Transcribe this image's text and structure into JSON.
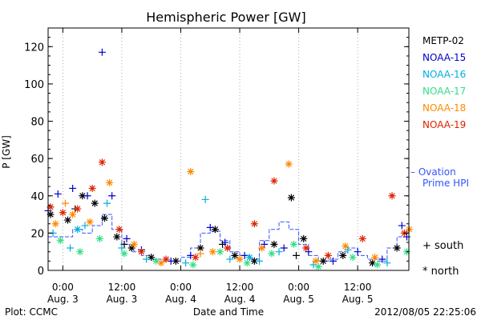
{
  "chart_data": {
    "type": "scatter",
    "title": "Hemispheric Power [GW]",
    "xlabel": "Date and Time",
    "ylabel": "P [GW]",
    "xlim": [
      "2012-08-02 21:00",
      "2012-08-05 22:25"
    ],
    "ylim": [
      0,
      130
    ],
    "yticks": [
      0,
      20,
      40,
      60,
      80,
      100,
      120
    ],
    "xticks": [
      {
        "t": "2012-08-03 00:00",
        "time": "0:00",
        "day": "Aug. 3"
      },
      {
        "t": "2012-08-03 12:00",
        "time": "12:00",
        "day": "Aug. 3"
      },
      {
        "t": "2012-08-04 00:00",
        "time": "0:00",
        "day": "Aug. 4"
      },
      {
        "t": "2012-08-04 12:00",
        "time": "12:00",
        "day": "Aug. 4"
      },
      {
        "t": "2012-08-05 00:00",
        "time": "0:00",
        "day": "Aug. 5"
      },
      {
        "t": "2012-08-05 12:00",
        "time": "12:00",
        "day": "Aug. 5"
      }
    ],
    "legend": {
      "placement": "right",
      "symbols": [
        {
          "symbol": "+",
          "label": "south"
        },
        {
          "symbol": "*",
          "label": "north"
        }
      ]
    },
    "series": [
      {
        "name": "METP-02",
        "color": "#000000",
        "points": [
          {
            "t": "2012-08-02 21:30",
            "y": 30,
            "hemi": "north"
          },
          {
            "t": "2012-08-03 01:00",
            "y": 27,
            "hemi": "north"
          },
          {
            "t": "2012-08-03 04:00",
            "y": 40,
            "hemi": "north"
          },
          {
            "t": "2012-08-03 06:30",
            "y": 36,
            "hemi": "north"
          },
          {
            "t": "2012-08-03 08:30",
            "y": 28,
            "hemi": "north"
          },
          {
            "t": "2012-08-03 11:00",
            "y": 18,
            "hemi": "north"
          },
          {
            "t": "2012-08-03 14:00",
            "y": 12,
            "hemi": "north"
          },
          {
            "t": "2012-08-03 18:00",
            "y": 7,
            "hemi": "north"
          },
          {
            "t": "2012-08-03 23:00",
            "y": 5,
            "hemi": "north"
          },
          {
            "t": "2012-08-04 04:00",
            "y": 12,
            "hemi": "north"
          },
          {
            "t": "2012-08-04 07:00",
            "y": 22,
            "hemi": "north"
          },
          {
            "t": "2012-08-04 11:00",
            "y": 8,
            "hemi": "north"
          },
          {
            "t": "2012-08-04 15:00",
            "y": 5,
            "hemi": "north"
          },
          {
            "t": "2012-08-04 19:00",
            "y": 14,
            "hemi": "north"
          },
          {
            "t": "2012-08-04 22:30",
            "y": 39,
            "hemi": "north"
          },
          {
            "t": "2012-08-05 01:00",
            "y": 17,
            "hemi": "north"
          },
          {
            "t": "2012-08-05 05:00",
            "y": 5,
            "hemi": "north"
          },
          {
            "t": "2012-08-05 09:00",
            "y": 8,
            "hemi": "north"
          },
          {
            "t": "2012-08-05 15:00",
            "y": 4,
            "hemi": "north"
          },
          {
            "t": "2012-08-05 20:00",
            "y": 12,
            "hemi": "north"
          },
          {
            "t": "2012-08-03 02:30",
            "y": 33,
            "hemi": "south"
          },
          {
            "t": "2012-08-03 12:30",
            "y": 14,
            "hemi": "south"
          },
          {
            "t": "2012-08-04 08:30",
            "y": 14,
            "hemi": "south"
          },
          {
            "t": "2012-08-04 23:30",
            "y": 8,
            "hemi": "south"
          }
        ]
      },
      {
        "name": "NOAA-15",
        "color": "#0000cc",
        "points": [
          {
            "t": "2012-08-02 21:00",
            "y": 32,
            "hemi": "south"
          },
          {
            "t": "2012-08-02 23:00",
            "y": 41,
            "hemi": "south"
          },
          {
            "t": "2012-08-03 02:00",
            "y": 44,
            "hemi": "south"
          },
          {
            "t": "2012-08-03 05:00",
            "y": 40,
            "hemi": "south"
          },
          {
            "t": "2012-08-03 08:00",
            "y": 117,
            "hemi": "south"
          },
          {
            "t": "2012-08-03 10:00",
            "y": 40,
            "hemi": "south"
          },
          {
            "t": "2012-08-03 13:00",
            "y": 17,
            "hemi": "south"
          },
          {
            "t": "2012-08-03 16:00",
            "y": 11,
            "hemi": "south"
          },
          {
            "t": "2012-08-03 22:00",
            "y": 5,
            "hemi": "south"
          },
          {
            "t": "2012-08-04 02:00",
            "y": 8,
            "hemi": "south"
          },
          {
            "t": "2012-08-04 06:00",
            "y": 23,
            "hemi": "south"
          },
          {
            "t": "2012-08-04 09:00",
            "y": 15,
            "hemi": "south"
          },
          {
            "t": "2012-08-04 13:00",
            "y": 8,
            "hemi": "south"
          },
          {
            "t": "2012-08-04 17:00",
            "y": 14,
            "hemi": "south"
          },
          {
            "t": "2012-08-04 21:00",
            "y": 12,
            "hemi": "south"
          },
          {
            "t": "2012-08-05 02:00",
            "y": 10,
            "hemi": "south"
          },
          {
            "t": "2012-08-05 07:00",
            "y": 5,
            "hemi": "south"
          },
          {
            "t": "2012-08-05 12:00",
            "y": 10,
            "hemi": "south"
          },
          {
            "t": "2012-08-05 17:00",
            "y": 6,
            "hemi": "south"
          },
          {
            "t": "2012-08-05 21:00",
            "y": 24,
            "hemi": "south"
          },
          {
            "t": "2012-08-05 22:00",
            "y": 18,
            "hemi": "south"
          }
        ]
      },
      {
        "name": "NOAA-16",
        "color": "#00b0e0",
        "points": [
          {
            "t": "2012-08-02 22:00",
            "y": 20,
            "hemi": "south"
          },
          {
            "t": "2012-08-03 01:30",
            "y": 12,
            "hemi": "south"
          },
          {
            "t": "2012-08-03 04:30",
            "y": 24,
            "hemi": "south"
          },
          {
            "t": "2012-08-03 09:00",
            "y": 36,
            "hemi": "south"
          },
          {
            "t": "2012-08-03 12:00",
            "y": 12,
            "hemi": "south"
          },
          {
            "t": "2012-08-03 17:00",
            "y": 6,
            "hemi": "south"
          },
          {
            "t": "2012-08-04 01:00",
            "y": 4,
            "hemi": "south"
          },
          {
            "t": "2012-08-04 05:00",
            "y": 38,
            "hemi": "south"
          },
          {
            "t": "2012-08-04 10:00",
            "y": 6,
            "hemi": "south"
          },
          {
            "t": "2012-08-04 16:00",
            "y": 5,
            "hemi": "south"
          },
          {
            "t": "2012-08-04 20:00",
            "y": 10,
            "hemi": "south"
          },
          {
            "t": "2012-08-05 03:00",
            "y": 3,
            "hemi": "south"
          },
          {
            "t": "2012-08-05 10:00",
            "y": 11,
            "hemi": "south"
          },
          {
            "t": "2012-08-05 18:00",
            "y": 4,
            "hemi": "south"
          },
          {
            "t": "2012-08-03 03:00",
            "y": 22,
            "hemi": "north"
          },
          {
            "t": "2012-08-04 14:00",
            "y": 7,
            "hemi": "north"
          }
        ]
      },
      {
        "name": "NOAA-17",
        "color": "#33dd88",
        "points": [
          {
            "t": "2012-08-02 23:30",
            "y": 16,
            "hemi": "north"
          },
          {
            "t": "2012-08-03 03:30",
            "y": 10,
            "hemi": "north"
          },
          {
            "t": "2012-08-03 07:30",
            "y": 17,
            "hemi": "north"
          },
          {
            "t": "2012-08-03 12:30",
            "y": 9,
            "hemi": "north"
          },
          {
            "t": "2012-08-03 19:00",
            "y": 5,
            "hemi": "north"
          },
          {
            "t": "2012-08-04 02:30",
            "y": 3,
            "hemi": "north"
          },
          {
            "t": "2012-08-04 08:00",
            "y": 10,
            "hemi": "north"
          },
          {
            "t": "2012-08-04 13:30",
            "y": 4,
            "hemi": "north"
          },
          {
            "t": "2012-08-04 18:30",
            "y": 9,
            "hemi": "north"
          },
          {
            "t": "2012-08-04 23:00",
            "y": 14,
            "hemi": "north"
          },
          {
            "t": "2012-08-05 04:00",
            "y": 2,
            "hemi": "north"
          },
          {
            "t": "2012-08-05 11:00",
            "y": 7,
            "hemi": "north"
          },
          {
            "t": "2012-08-05 16:00",
            "y": 3,
            "hemi": "north"
          },
          {
            "t": "2012-08-05 22:00",
            "y": 10,
            "hemi": "north"
          }
        ]
      },
      {
        "name": "NOAA-18",
        "color": "#ff8800",
        "points": [
          {
            "t": "2012-08-02 22:30",
            "y": 25,
            "hemi": "north"
          },
          {
            "t": "2012-08-03 02:00",
            "y": 30,
            "hemi": "north"
          },
          {
            "t": "2012-08-03 05:30",
            "y": 26,
            "hemi": "north"
          },
          {
            "t": "2012-08-03 09:30",
            "y": 47,
            "hemi": "north"
          },
          {
            "t": "2012-08-03 14:30",
            "y": 14,
            "hemi": "north"
          },
          {
            "t": "2012-08-03 20:00",
            "y": 4,
            "hemi": "north"
          },
          {
            "t": "2012-08-04 02:00",
            "y": 53,
            "hemi": "north"
          },
          {
            "t": "2012-08-04 06:30",
            "y": 10,
            "hemi": "north"
          },
          {
            "t": "2012-08-04 12:00",
            "y": 6,
            "hemi": "north"
          },
          {
            "t": "2012-08-04 16:30",
            "y": 12,
            "hemi": "north"
          },
          {
            "t": "2012-08-04 22:00",
            "y": 57,
            "hemi": "north"
          },
          {
            "t": "2012-08-05 03:30",
            "y": 5,
            "hemi": "north"
          },
          {
            "t": "2012-08-05 09:30",
            "y": 13,
            "hemi": "north"
          },
          {
            "t": "2012-08-05 15:30",
            "y": 7,
            "hemi": "north"
          },
          {
            "t": "2012-08-05 22:30",
            "y": 22,
            "hemi": "north"
          },
          {
            "t": "2012-08-03 00:30",
            "y": 36,
            "hemi": "south"
          },
          {
            "t": "2012-08-04 04:00",
            "y": 9,
            "hemi": "south"
          }
        ]
      },
      {
        "name": "NOAA-19",
        "color": "#dd2200",
        "points": [
          {
            "t": "2012-08-02 21:30",
            "y": 34,
            "hemi": "north"
          },
          {
            "t": "2012-08-03 00:00",
            "y": 31,
            "hemi": "north"
          },
          {
            "t": "2012-08-03 03:00",
            "y": 33,
            "hemi": "north"
          },
          {
            "t": "2012-08-03 06:00",
            "y": 44,
            "hemi": "north"
          },
          {
            "t": "2012-08-03 08:00",
            "y": 58,
            "hemi": "north"
          },
          {
            "t": "2012-08-03 11:30",
            "y": 22,
            "hemi": "north"
          },
          {
            "t": "2012-08-03 16:00",
            "y": 10,
            "hemi": "north"
          },
          {
            "t": "2012-08-03 21:00",
            "y": 6,
            "hemi": "north"
          },
          {
            "t": "2012-08-04 03:00",
            "y": 7,
            "hemi": "north"
          },
          {
            "t": "2012-08-04 09:30",
            "y": 12,
            "hemi": "north"
          },
          {
            "t": "2012-08-04 15:00",
            "y": 25,
            "hemi": "north"
          },
          {
            "t": "2012-08-04 19:00",
            "y": 48,
            "hemi": "north"
          },
          {
            "t": "2012-08-05 01:30",
            "y": 12,
            "hemi": "north"
          },
          {
            "t": "2012-08-05 06:00",
            "y": 8,
            "hemi": "north"
          },
          {
            "t": "2012-08-05 13:00",
            "y": 17,
            "hemi": "north"
          },
          {
            "t": "2012-08-05 19:00",
            "y": 40,
            "hemi": "north"
          },
          {
            "t": "2012-08-05 21:30",
            "y": 20,
            "hemi": "north"
          }
        ]
      }
    ],
    "ovation": {
      "name": "– Ovation Prime HPI",
      "color": "#3355ff",
      "points": [
        {
          "t": "2012-08-02 21:00",
          "y": 18
        },
        {
          "t": "2012-08-03 02:00",
          "y": 22
        },
        {
          "t": "2012-08-03 04:00",
          "y": 20
        },
        {
          "t": "2012-08-03 06:00",
          "y": 24
        },
        {
          "t": "2012-08-03 08:00",
          "y": 30
        },
        {
          "t": "2012-08-03 10:00",
          "y": 22
        },
        {
          "t": "2012-08-03 12:00",
          "y": 14
        },
        {
          "t": "2012-08-03 14:00",
          "y": 10
        },
        {
          "t": "2012-08-03 16:00",
          "y": 8
        },
        {
          "t": "2012-08-03 18:00",
          "y": 6
        },
        {
          "t": "2012-08-03 20:00",
          "y": 5
        },
        {
          "t": "2012-08-03 22:00",
          "y": 5
        },
        {
          "t": "2012-08-04 00:00",
          "y": 7
        },
        {
          "t": "2012-08-04 02:00",
          "y": 12
        },
        {
          "t": "2012-08-04 04:00",
          "y": 20
        },
        {
          "t": "2012-08-04 06:00",
          "y": 21
        },
        {
          "t": "2012-08-04 08:00",
          "y": 16
        },
        {
          "t": "2012-08-04 10:00",
          "y": 10
        },
        {
          "t": "2012-08-04 12:00",
          "y": 8
        },
        {
          "t": "2012-08-04 14:00",
          "y": 6
        },
        {
          "t": "2012-08-04 16:00",
          "y": 16
        },
        {
          "t": "2012-08-04 18:00",
          "y": 22
        },
        {
          "t": "2012-08-04 20:00",
          "y": 26
        },
        {
          "t": "2012-08-04 22:00",
          "y": 22
        },
        {
          "t": "2012-08-05 00:00",
          "y": 14
        },
        {
          "t": "2012-08-05 02:00",
          "y": 8
        },
        {
          "t": "2012-08-05 04:00",
          "y": 5
        },
        {
          "t": "2012-08-05 06:00",
          "y": 6
        },
        {
          "t": "2012-08-05 08:00",
          "y": 10
        },
        {
          "t": "2012-08-05 10:00",
          "y": 12
        },
        {
          "t": "2012-08-05 12:00",
          "y": 8
        },
        {
          "t": "2012-08-05 14:00",
          "y": 6
        },
        {
          "t": "2012-08-05 16:00",
          "y": 5
        },
        {
          "t": "2012-08-05 18:00",
          "y": 12
        },
        {
          "t": "2012-08-05 20:00",
          "y": 18
        },
        {
          "t": "2012-08-05 22:00",
          "y": 21
        }
      ]
    }
  },
  "footer": {
    "left": "Plot: CCMC",
    "right": "2012/08/05 22:25:06"
  }
}
